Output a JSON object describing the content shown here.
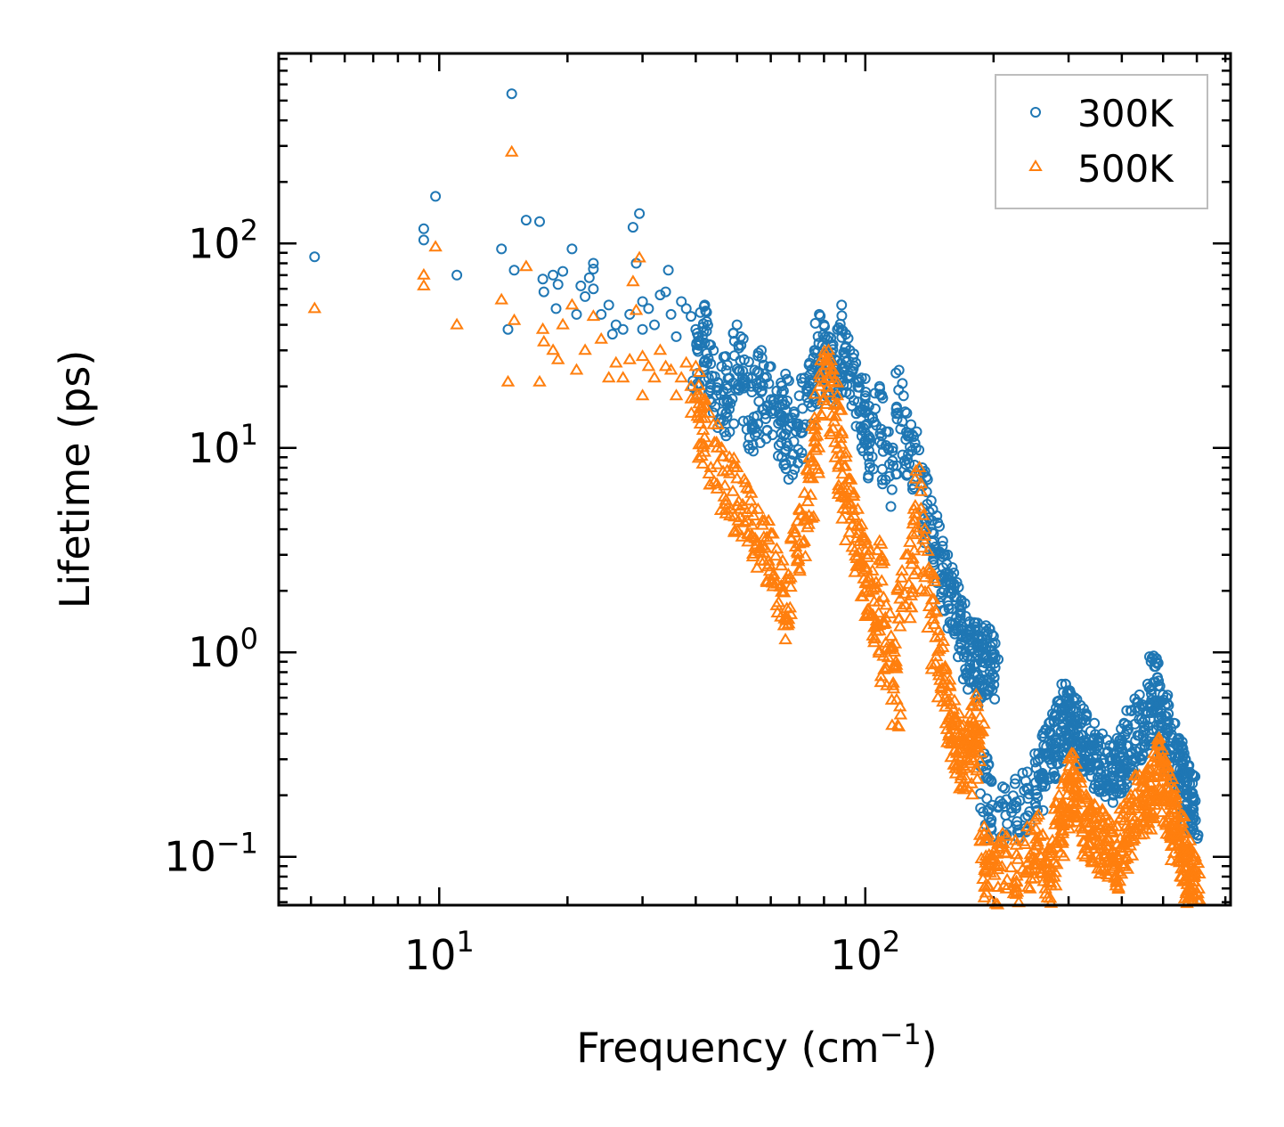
{
  "chart_data": {
    "type": "scatter",
    "title": "",
    "xlabel": "Frequency (cm",
    "xlabel_sup": "−1",
    "xlabel_end": ")",
    "ylabel": "Lifetime (ps)",
    "xscale": "log",
    "yscale": "log",
    "xlim": [
      4.2,
      720
    ],
    "ylim": [
      0.058,
      850
    ],
    "x_ticks": [
      {
        "base": "10",
        "exp": "1",
        "value": 10
      },
      {
        "base": "10",
        "exp": "2",
        "value": 100
      }
    ],
    "y_ticks": [
      {
        "base": "10",
        "exp": "−1",
        "value": 0.1
      },
      {
        "base": "10",
        "exp": "0",
        "value": 1
      },
      {
        "base": "10",
        "exp": "1",
        "value": 10
      },
      {
        "base": "10",
        "exp": "2",
        "value": 100
      }
    ],
    "legend_position": "top-right",
    "series": [
      {
        "name": "300K",
        "color": "#1f77b4",
        "marker": "circle",
        "points": [
          [
            5.1,
            86
          ],
          [
            9.2,
            118
          ],
          [
            9.2,
            104
          ],
          [
            9.8,
            170
          ],
          [
            11,
            70
          ],
          [
            14,
            94
          ],
          [
            14.5,
            38
          ],
          [
            14.8,
            540
          ],
          [
            15,
            74
          ],
          [
            16,
            130
          ],
          [
            17.2,
            128
          ],
          [
            17.5,
            67
          ],
          [
            17.6,
            58
          ],
          [
            18.5,
            70
          ],
          [
            18.8,
            48
          ],
          [
            19,
            63
          ],
          [
            19.5,
            73
          ],
          [
            20.5,
            94
          ],
          [
            21,
            45
          ],
          [
            21.5,
            62
          ],
          [
            22,
            55
          ],
          [
            22.5,
            68
          ],
          [
            23,
            80
          ],
          [
            23,
            75
          ],
          [
            23,
            60
          ],
          [
            24,
            45
          ],
          [
            25,
            50
          ],
          [
            25.5,
            36
          ],
          [
            26,
            40
          ],
          [
            27,
            38
          ],
          [
            28,
            45
          ],
          [
            28.5,
            120
          ],
          [
            29,
            80
          ],
          [
            29.5,
            140
          ],
          [
            30,
            52
          ],
          [
            30,
            38
          ],
          [
            31,
            48
          ],
          [
            32,
            40
          ],
          [
            33,
            56
          ],
          [
            34,
            58
          ],
          [
            34.5,
            74
          ],
          [
            35,
            45
          ],
          [
            36,
            35
          ],
          [
            37,
            52
          ],
          [
            38,
            48
          ],
          [
            39,
            44
          ],
          [
            40,
            38
          ],
          [
            41,
            46
          ],
          [
            42,
            50
          ],
          [
            43,
            32
          ],
          [
            44,
            30
          ],
          [
            46,
            25
          ],
          [
            47,
            28
          ],
          [
            48,
            22
          ],
          [
            50,
            40
          ],
          [
            51,
            35
          ],
          [
            52,
            27
          ],
          [
            54,
            20
          ],
          [
            55,
            24
          ],
          [
            57,
            30
          ],
          [
            58,
            22
          ],
          [
            60,
            25
          ],
          [
            62,
            19
          ],
          [
            64,
            17
          ],
          [
            65,
            23
          ],
          [
            66,
            14
          ],
          [
            68,
            15
          ],
          [
            70,
            18
          ],
          [
            72,
            22
          ],
          [
            74,
            26
          ],
          [
            76,
            30
          ],
          [
            78,
            45
          ],
          [
            80,
            40
          ],
          [
            82,
            35
          ],
          [
            84,
            32
          ],
          [
            86,
            38
          ],
          [
            88,
            50
          ],
          [
            90,
            36
          ],
          [
            92,
            30
          ],
          [
            95,
            26
          ],
          [
            98,
            22
          ],
          [
            100,
            18
          ],
          [
            102,
            16
          ],
          [
            104,
            14
          ],
          [
            108,
            20
          ],
          [
            112,
            12
          ],
          [
            116,
            10
          ],
          [
            120,
            24
          ],
          [
            124,
            15
          ],
          [
            128,
            13
          ],
          [
            132,
            12
          ],
          [
            136,
            8
          ],
          [
            140,
            7
          ],
          [
            144,
            5
          ],
          [
            148,
            4.3
          ],
          [
            152,
            3.5
          ],
          [
            156,
            3.0
          ],
          [
            160,
            2.6
          ],
          [
            164,
            2.2
          ],
          [
            168,
            1.8
          ],
          [
            172,
            1.5
          ],
          [
            176,
            1.3
          ],
          [
            180,
            1.4
          ],
          [
            184,
            1.2
          ],
          [
            188,
            1.1
          ],
          [
            192,
            1.35
          ],
          [
            196,
            1.3
          ],
          [
            200,
            1.2
          ],
          [
            190,
            0.32
          ],
          [
            195,
            0.24
          ],
          [
            210,
            0.22
          ],
          [
            225,
            0.24
          ],
          [
            240,
            0.26
          ],
          [
            255,
            0.32
          ],
          [
            265,
            0.42
          ],
          [
            275,
            0.5
          ],
          [
            285,
            0.58
          ],
          [
            295,
            0.7
          ],
          [
            300,
            0.65
          ],
          [
            310,
            0.6
          ],
          [
            320,
            0.55
          ],
          [
            330,
            0.5
          ],
          [
            345,
            0.45
          ],
          [
            360,
            0.4
          ],
          [
            375,
            0.35
          ],
          [
            390,
            0.38
          ],
          [
            405,
            0.45
          ],
          [
            420,
            0.52
          ],
          [
            440,
            0.62
          ],
          [
            460,
            0.7
          ],
          [
            475,
            0.96
          ],
          [
            485,
            0.75
          ],
          [
            500,
            0.62
          ],
          [
            515,
            0.55
          ],
          [
            530,
            0.45
          ],
          [
            545,
            0.38
          ],
          [
            560,
            0.32
          ],
          [
            575,
            0.28
          ],
          [
            590,
            0.25
          ]
        ]
      },
      {
        "name": "500K",
        "color": "#ff7f0e",
        "marker": "triangle",
        "points": [
          [
            5.1,
            48
          ],
          [
            9.2,
            70
          ],
          [
            9.2,
            62
          ],
          [
            9.8,
            96
          ],
          [
            11,
            40
          ],
          [
            14,
            53
          ],
          [
            14.5,
            21
          ],
          [
            14.8,
            280
          ],
          [
            15,
            42
          ],
          [
            16,
            77
          ],
          [
            17.2,
            21
          ],
          [
            17.5,
            38
          ],
          [
            17.6,
            33
          ],
          [
            18.5,
            30
          ],
          [
            19,
            27
          ],
          [
            19.5,
            40
          ],
          [
            20.5,
            50
          ],
          [
            21,
            24
          ],
          [
            22,
            30
          ],
          [
            23,
            44
          ],
          [
            24,
            34
          ],
          [
            25,
            22
          ],
          [
            26,
            26
          ],
          [
            27,
            22
          ],
          [
            28,
            27
          ],
          [
            28.5,
            65
          ],
          [
            29,
            47
          ],
          [
            29.5,
            85
          ],
          [
            30,
            28
          ],
          [
            30,
            18
          ],
          [
            31,
            25
          ],
          [
            32,
            22
          ],
          [
            33,
            30
          ],
          [
            34,
            25
          ],
          [
            35,
            24
          ],
          [
            36,
            18
          ],
          [
            37,
            22
          ],
          [
            38,
            26
          ],
          [
            39,
            20
          ],
          [
            40,
            25
          ],
          [
            41,
            18
          ],
          [
            42,
            16
          ],
          [
            44,
            13
          ],
          [
            46,
            10
          ],
          [
            48,
            9
          ],
          [
            50,
            8
          ],
          [
            52,
            7
          ],
          [
            54,
            6
          ],
          [
            56,
            5
          ],
          [
            58,
            4.4
          ],
          [
            60,
            3.8
          ],
          [
            62,
            3.2
          ],
          [
            64,
            2.8
          ],
          [
            66,
            2.4
          ],
          [
            68,
            4.0
          ],
          [
            70,
            5.0
          ],
          [
            72,
            6.0
          ],
          [
            74,
            9.0
          ],
          [
            76,
            14
          ],
          [
            78,
            20
          ],
          [
            80,
            28
          ],
          [
            82,
            30
          ],
          [
            84,
            24
          ],
          [
            86,
            18
          ],
          [
            88,
            12
          ],
          [
            90,
            9
          ],
          [
            92,
            7
          ],
          [
            94,
            6
          ],
          [
            96,
            5
          ],
          [
            98,
            4.2
          ],
          [
            100,
            3.6
          ],
          [
            102,
            3.0
          ],
          [
            104,
            2.5
          ],
          [
            106,
            2.2
          ],
          [
            108,
            3.5
          ],
          [
            110,
            1.4
          ],
          [
            112,
            1.7
          ],
          [
            115,
            1.2
          ],
          [
            118,
            0.9
          ],
          [
            122,
            2.5
          ],
          [
            126,
            3.0
          ],
          [
            130,
            5.0
          ],
          [
            134,
            8.0
          ],
          [
            138,
            4.0
          ],
          [
            142,
            2.5
          ],
          [
            146,
            1.6
          ],
          [
            150,
            1.2
          ],
          [
            154,
            0.85
          ],
          [
            158,
            0.68
          ],
          [
            162,
            0.58
          ],
          [
            166,
            0.5
          ],
          [
            170,
            0.44
          ],
          [
            174,
            0.4
          ],
          [
            178,
            0.55
          ],
          [
            182,
            0.62
          ],
          [
            186,
            0.48
          ],
          [
            190,
            0.14
          ],
          [
            195,
            0.12
          ],
          [
            200,
            0.105
          ],
          [
            210,
            0.13
          ],
          [
            225,
            0.12
          ],
          [
            240,
            0.14
          ],
          [
            255,
            0.16
          ],
          [
            265,
            0.095
          ],
          [
            275,
            0.12
          ],
          [
            285,
            0.2
          ],
          [
            295,
            0.25
          ],
          [
            305,
            0.32
          ],
          [
            315,
            0.25
          ],
          [
            330,
            0.2
          ],
          [
            345,
            0.18
          ],
          [
            360,
            0.17
          ],
          [
            375,
            0.15
          ],
          [
            390,
            0.14
          ],
          [
            405,
            0.18
          ],
          [
            420,
            0.2
          ],
          [
            440,
            0.25
          ],
          [
            460,
            0.27
          ],
          [
            475,
            0.32
          ],
          [
            490,
            0.38
          ],
          [
            505,
            0.3
          ],
          [
            520,
            0.25
          ],
          [
            535,
            0.2
          ],
          [
            550,
            0.16
          ],
          [
            565,
            0.13
          ],
          [
            580,
            0.11
          ],
          [
            595,
            0.1
          ]
        ]
      }
    ]
  }
}
